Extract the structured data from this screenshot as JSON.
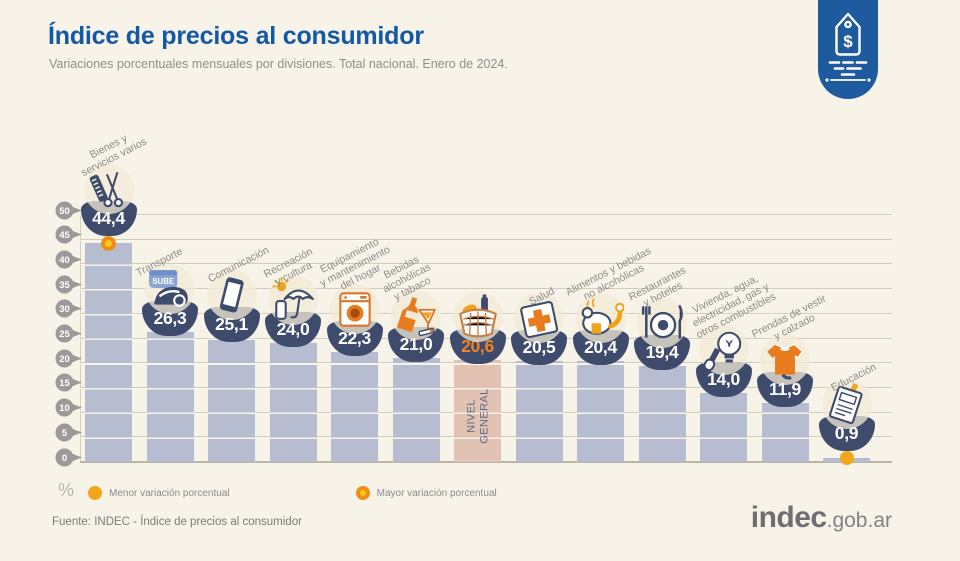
{
  "header": {
    "title": "Índice de precios al consumidor",
    "subtitle": "Variaciones porcentuales mensuales por divisiones. Total nacional. Enero de 2024.",
    "corner_badge_icon": "price-tag-icon"
  },
  "chart_data": {
    "type": "bar",
    "title": "Índice de precios al consumidor",
    "subtitle": "Variaciones porcentuales mensuales por divisiones. Total nacional. Enero de 2024.",
    "ylabel": "%",
    "ylim": [
      0,
      50
    ],
    "yticks": [
      0,
      5,
      10,
      15,
      20,
      25,
      30,
      35,
      40,
      45,
      50
    ],
    "grid": true,
    "legend_position": "bottom",
    "categories": [
      "Bienes y servicios varios",
      "Transporte",
      "Comunicación",
      "Recreación y cultura",
      "Equipamiento y mantenimiento del hogar",
      "Bebidas alcohólicas y tabaco",
      "Nivel general",
      "Salud",
      "Alimentos y bebidas no alcohólicas",
      "Restaurantes y hoteles",
      "Vivienda, agua, electricidad, gas y otros combustibles",
      "Prendas de vestir y calzado",
      "Educación"
    ],
    "values": [
      44.4,
      26.3,
      25.1,
      24.0,
      22.3,
      21.0,
      20.6,
      20.5,
      20.4,
      19.4,
      14.0,
      11.9,
      0.9
    ],
    "value_labels": [
      "44,4",
      "26,3",
      "25,1",
      "24,0",
      "22,3",
      "21,0",
      "20,6",
      "20,5",
      "20,4",
      "19,4",
      "14,0",
      "11,9",
      "0,9"
    ],
    "highlight": {
      "index": 6,
      "bar_label": "NIVEL GENERAL"
    },
    "max_marker_index": 0,
    "min_marker_index": 12
  },
  "columns": [
    {
      "label": "Bienes y\nservicios varios",
      "display": "44,4",
      "value": 44.4,
      "icon": "comb-scissors-icon",
      "dot": "mayor",
      "general": false
    },
    {
      "label": "Transporte",
      "display": "26,3",
      "value": 26.3,
      "icon": "transport-card-icon",
      "dot": null,
      "general": false
    },
    {
      "label": "Comunicación",
      "display": "25,1",
      "value": 25.1,
      "icon": "smartphone-icon",
      "dot": null,
      "general": false
    },
    {
      "label": "Recreación\ny cultura",
      "display": "24,0",
      "value": 24.0,
      "icon": "umbrella-sun-icon",
      "dot": null,
      "general": false
    },
    {
      "label": "Equipamiento\ny mantenimiento\ndel hogar",
      "display": "22,3",
      "value": 22.3,
      "icon": "washing-machine-icon",
      "dot": null,
      "general": false
    },
    {
      "label": "Bebidas\nalcohólicas\ny tabaco",
      "display": "21,0",
      "value": 21.0,
      "icon": "drinks-tobacco-icon",
      "dot": null,
      "general": false
    },
    {
      "label": "",
      "display": "20,6",
      "value": 20.6,
      "icon": "shopping-basket-icon",
      "dot": null,
      "general": true,
      "bar_label": "NIVEL\nGENERAL"
    },
    {
      "label": "Salud",
      "display": "20,5",
      "value": 20.5,
      "icon": "health-cross-icon",
      "dot": null,
      "general": false
    },
    {
      "label": "Alimentos y bebidas\nno alcohólicas",
      "display": "20,4",
      "value": 20.4,
      "icon": "poultry-icon",
      "dot": null,
      "general": false
    },
    {
      "label": "Restaurantes\ny hoteles",
      "display": "19,4",
      "value": 19.4,
      "icon": "cutlery-icon",
      "dot": null,
      "general": false
    },
    {
      "label": "Vivienda, agua,\nelectricidad, gas y\notros combustibles",
      "display": "14,0",
      "value": 14.0,
      "icon": "lightbulb-icon",
      "dot": null,
      "general": false
    },
    {
      "label": "Prendas de vestir\ny calzado",
      "display": "11,9",
      "value": 11.9,
      "icon": "tshirt-icon",
      "dot": null,
      "general": false
    },
    {
      "label": "Educación",
      "display": "0,9",
      "value": 0.9,
      "icon": "notebook-icon",
      "dot": "menor",
      "general": false
    }
  ],
  "axis": {
    "percent": "%"
  },
  "legend": {
    "menor": "Menor variación porcentual",
    "mayor": "Mayor variación porcentual"
  },
  "footer": {
    "source": "Fuente: INDEC - Índice de precios al consumidor",
    "logo_main": "indec",
    "logo_suffix": ".gob.ar"
  },
  "colors": {
    "background": "#f8f3e8",
    "title_blue": "#1258a4",
    "bar": "#b7bdd0",
    "bar_general": "#e2c2b3",
    "badge_navy": "#3e4b6d",
    "accent_orange": "#e87b1e",
    "marker_yellow": "#f2a71b",
    "marker_ring": "#ee8f15",
    "tick_gray": "#9b9a98",
    "corner_blue": "#1d5a9e"
  }
}
